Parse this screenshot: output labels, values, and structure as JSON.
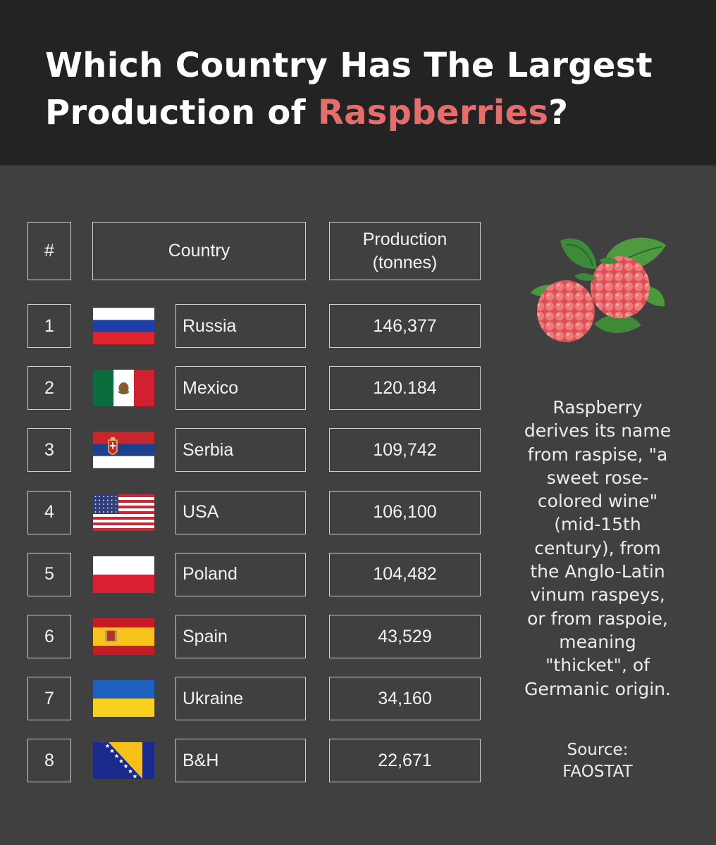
{
  "title": {
    "line1": "Which Country Has The Largest",
    "line2_prefix": "Production of ",
    "line2_accent": "Raspberries",
    "line2_suffix": "?"
  },
  "colors": {
    "accent": "#e46e6c",
    "header_bg": "#232323",
    "panel_bg": "#404040"
  },
  "chart_data": {
    "type": "table",
    "columns": [
      "#",
      "Country",
      "Production\n(tonnes)"
    ],
    "rows": [
      {
        "rank": "1",
        "flag": "russia-flag-icon",
        "country": "Russia",
        "production": "146,377"
      },
      {
        "rank": "2",
        "flag": "mexico-flag-icon",
        "country": "Mexico",
        "production": "120.184"
      },
      {
        "rank": "3",
        "flag": "serbia-flag-icon",
        "country": "Serbia",
        "production": "109,742"
      },
      {
        "rank": "4",
        "flag": "usa-flag-icon",
        "country": "USA",
        "production": "106,100"
      },
      {
        "rank": "5",
        "flag": "poland-flag-icon",
        "country": "Poland",
        "production": "104,482"
      },
      {
        "rank": "6",
        "flag": "spain-flag-icon",
        "country": "Spain",
        "production": "43,529"
      },
      {
        "rank": "7",
        "flag": "ukraine-flag-icon",
        "country": "Ukraine",
        "production": "34,160"
      },
      {
        "rank": "8",
        "flag": "bosnia-flag-icon",
        "country": "B&H",
        "production": "22,671"
      }
    ]
  },
  "illustration": "raspberry-icon",
  "side_note": "Raspberry derives its name from raspise, \"a sweet rose-colored wine\" (mid-15th century), from the Anglo-Latin vinum raspeys, or from raspoie, meaning \"thicket\", of Germanic origin.",
  "source": {
    "label": "Source:",
    "name": "FAOSTAT"
  }
}
